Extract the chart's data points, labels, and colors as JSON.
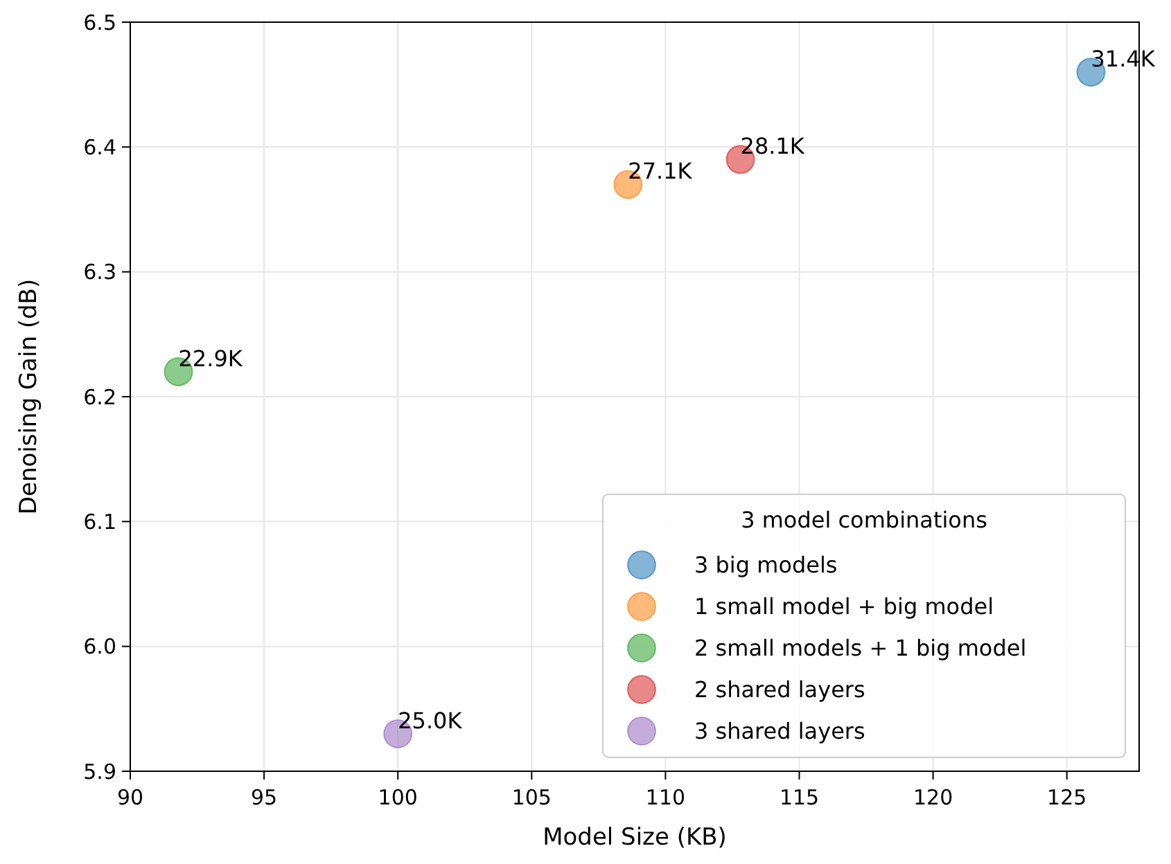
{
  "chart_data": {
    "type": "scatter",
    "xlabel": "Model Size (KB)",
    "ylabel": "Denoising Gain (dB)",
    "legend_title": "3 model combinations",
    "legend": "bottom right",
    "grid": true,
    "marker": "circle",
    "xlim": [
      90,
      127.7
    ],
    "xticks": [
      90,
      95,
      100,
      105,
      110,
      115,
      120,
      125
    ],
    "ylim": [
      5.9,
      6.5
    ],
    "yticks": [
      5.9,
      {
        "value": 6.0,
        "label": "6.0"
      },
      6.1,
      6.2,
      6.3,
      6.4,
      6.5
    ],
    "series": [
      {
        "name": "3 big models",
        "color": "#1f77b4",
        "x": [
          125.9
        ],
        "values": [
          6.46
        ]
      },
      {
        "name": "1 small model + big model",
        "color": "#ff7f0e",
        "x": [
          108.6
        ],
        "values": [
          6.37
        ]
      },
      {
        "name": "2 small models + 1 big model",
        "color": "#2ca02c",
        "x": [
          91.8
        ],
        "values": [
          6.22
        ]
      },
      {
        "name": "2 shared layers",
        "color": "#d62728",
        "x": [
          112.8
        ],
        "values": [
          6.39
        ]
      },
      {
        "name": "3 shared layers",
        "color": "#9467bd",
        "x": [
          100.0
        ],
        "values": [
          5.93
        ]
      }
    ],
    "annotations": [
      {
        "text": "31.4K",
        "x": 125.9,
        "y": 6.46
      },
      {
        "text": "27.1K",
        "x": 108.6,
        "y": 6.37
      },
      {
        "text": "22.9K",
        "x": 91.8,
        "y": 6.22
      },
      {
        "text": "28.1K",
        "x": 112.8,
        "y": 6.39
      },
      {
        "text": "25.0K",
        "x": 100.0,
        "y": 5.93
      }
    ]
  }
}
